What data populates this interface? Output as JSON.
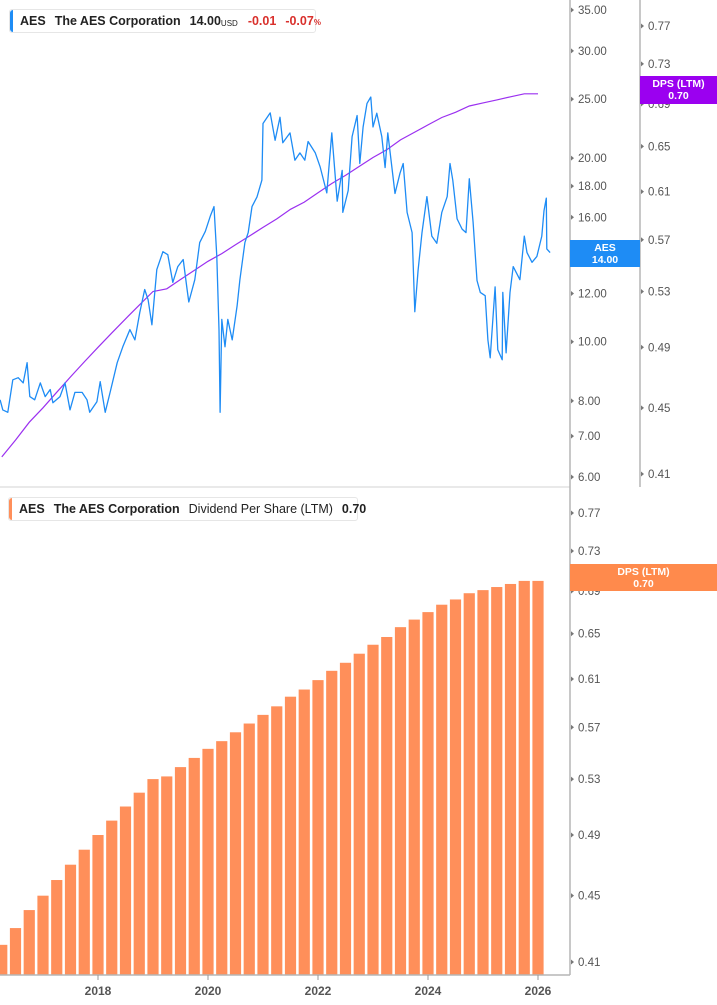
{
  "top_legend": {
    "ticker": "AES",
    "name": "The AES Corporation",
    "price": "14.00",
    "currency": "USD",
    "change": "-0.01",
    "change_pct": "-0.07",
    "pct_sign": "%"
  },
  "bottom_legend": {
    "ticker": "AES",
    "name": "The AES Corporation",
    "metric": "Dividend Per Share (LTM)",
    "value": "0.70"
  },
  "price_tag": {
    "line1": "AES",
    "line2": "14.00"
  },
  "dps_tag_top": {
    "line1": "DPS (LTM)",
    "line2": "0.70"
  },
  "dps_tag_bottom": {
    "line1": "DPS (LTM)",
    "line2": "0.70"
  },
  "colors": {
    "price": "#1e8cf5",
    "dps_line": "#9b30f0",
    "dps_bar": "#ff8f5a",
    "negative": "#d9302c",
    "axis": "#b5b5b5"
  },
  "chart_data": [
    {
      "type": "line",
      "scale": "log",
      "series_label": "AES",
      "y_axis_ticks": [
        "35.00",
        "30.00",
        "25.00",
        "20.00",
        "18.00",
        "16.00",
        "14.00",
        "12.00",
        "10.00",
        "8.00",
        "7.00",
        "6.00"
      ],
      "ylim": [
        6,
        35
      ],
      "x": [
        2016.22,
        2016.27,
        2016.36,
        2016.45,
        2016.55,
        2016.64,
        2016.71,
        2016.76,
        2016.85,
        2016.95,
        2017.04,
        2017.13,
        2017.18,
        2017.31,
        2017.4,
        2017.49,
        2017.58,
        2017.71,
        2017.8,
        2017.85,
        2017.98,
        2018.04,
        2018.13,
        2018.22,
        2018.35,
        2018.45,
        2018.58,
        2018.67,
        2018.76,
        2018.85,
        2018.91,
        2018.98,
        2019.07,
        2019.18,
        2019.27,
        2019.36,
        2019.45,
        2019.55,
        2019.62,
        2019.65,
        2019.76,
        2019.85,
        2019.95,
        2020.04,
        2020.11,
        2020.16,
        2020.2,
        2020.22,
        2020.25,
        2020.31,
        2020.36,
        2020.44,
        2020.53,
        2020.58,
        2020.67,
        2020.73,
        2020.8,
        2020.89,
        2020.98,
        2021.0,
        2021.13,
        2021.22,
        2021.31,
        2021.36,
        2021.49,
        2021.58,
        2021.67,
        2021.76,
        2021.82,
        2021.95,
        2022.04,
        2022.16,
        2022.25,
        2022.35,
        2022.44,
        2022.45,
        2022.55,
        2022.62,
        2022.71,
        2022.76,
        2022.82,
        2022.89,
        2022.96,
        2023.0,
        2023.07,
        2023.16,
        2023.22,
        2023.27,
        2023.4,
        2023.49,
        2023.55,
        2023.62,
        2023.71,
        2023.76,
        2023.82,
        2023.89,
        2023.98,
        2024.07,
        2024.16,
        2024.25,
        2024.35,
        2024.4,
        2024.45,
        2024.53,
        2024.62,
        2024.69,
        2024.75,
        2024.82,
        2024.89,
        2024.95,
        2025.04,
        2025.09,
        2025.13,
        2025.22,
        2025.27,
        2025.35,
        2025.36,
        2025.42,
        2025.49,
        2025.55,
        2025.67,
        2025.75,
        2025.8,
        2025.89,
        2025.98,
        2026.07,
        2026.11,
        2026.15,
        2026.16,
        2026.22
      ],
      "y": [
        8.03,
        7.73,
        7.66,
        8.66,
        8.73,
        8.56,
        9.24,
        8.13,
        8.03,
        8.56,
        8.13,
        8.35,
        7.94,
        8.13,
        8.56,
        7.73,
        8.26,
        8.26,
        8.03,
        7.66,
        7.97,
        8.6,
        7.66,
        8.26,
        9.24,
        9.81,
        10.47,
        10.07,
        11.17,
        12.18,
        11.72,
        10.66,
        13.13,
        14.05,
        13.89,
        12.51,
        13.28,
        13.64,
        12.18,
        11.62,
        12.64,
        14.54,
        15.17,
        16.05,
        16.66,
        13.8,
        10.47,
        7.66,
        10.88,
        9.81,
        10.88,
        10.07,
        11.45,
        12.64,
        14.54,
        15.1,
        16.66,
        17.28,
        18.41,
        22.8,
        23.73,
        21.4,
        23.35,
        21.2,
        22.0,
        19.85,
        20.4,
        19.85,
        21.3,
        20.4,
        19.34,
        17.54,
        22.0,
        17.0,
        19.1,
        16.3,
        17.7,
        21.7,
        23.5,
        19.6,
        22.5,
        24.6,
        25.2,
        22.5,
        23.7,
        21.7,
        19.3,
        22.0,
        17.5,
        18.9,
        19.6,
        16.3,
        15.1,
        11.2,
        13.1,
        15.1,
        17.3,
        14.9,
        14.5,
        16.3,
        17.3,
        19.6,
        18.4,
        15.9,
        15.3,
        15.1,
        18.5,
        15.7,
        12.6,
        12.05,
        11.9,
        10.07,
        9.41,
        12.3,
        9.7,
        9.34,
        12.05,
        9.59,
        12.05,
        13.28,
        12.64,
        14.9,
        14.0,
        13.5,
        13.8,
        14.9,
        16.4,
        17.2,
        14.2,
        14.0
      ],
      "secondary": {
        "series_label": "DPS (LTM)",
        "scale": "log",
        "y_axis_ticks": [
          "0.77",
          "0.73",
          "0.69",
          "0.65",
          "0.61",
          "0.57",
          "0.53",
          "0.49",
          "0.45",
          "0.41"
        ],
        "ylim": [
          0.41,
          0.77
        ]
      }
    },
    {
      "type": "bar",
      "scale": "log",
      "series_label": "DPS (LTM)",
      "x_axis_ticks": [
        "2018",
        "2020",
        "2022",
        "2024",
        "2026"
      ],
      "y_axis_ticks": [
        "0.77",
        "0.73",
        "0.69",
        "0.65",
        "0.61",
        "0.57",
        "0.53",
        "0.49",
        "0.45",
        "0.41"
      ],
      "ylim": [
        0.41,
        0.77
      ],
      "x": [
        2016.25,
        2016.5,
        2016.75,
        2017.0,
        2017.25,
        2017.5,
        2017.75,
        2018.0,
        2018.25,
        2018.5,
        2018.75,
        2019.0,
        2019.25,
        2019.5,
        2019.75,
        2020.0,
        2020.25,
        2020.5,
        2020.75,
        2021.0,
        2021.25,
        2021.5,
        2021.75,
        2022.0,
        2022.25,
        2022.5,
        2022.75,
        2023.0,
        2023.25,
        2023.5,
        2023.75,
        2024.0,
        2024.25,
        2024.5,
        2024.75,
        2025.0,
        2025.25,
        2025.5,
        2025.75,
        2026.0
      ],
      "values": [
        0.42,
        0.43,
        0.441,
        0.45,
        0.46,
        0.47,
        0.48,
        0.49,
        0.5,
        0.51,
        0.52,
        0.53,
        0.532,
        0.539,
        0.546,
        0.553,
        0.559,
        0.566,
        0.573,
        0.58,
        0.587,
        0.595,
        0.601,
        0.609,
        0.617,
        0.624,
        0.632,
        0.64,
        0.647,
        0.656,
        0.663,
        0.67,
        0.677,
        0.682,
        0.688,
        0.691,
        0.694,
        0.697,
        0.7,
        0.7
      ]
    }
  ]
}
